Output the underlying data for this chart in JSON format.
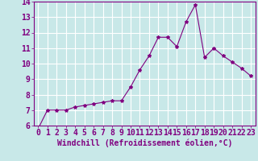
{
  "x": [
    0,
    1,
    2,
    3,
    4,
    5,
    6,
    7,
    8,
    9,
    10,
    11,
    12,
    13,
    14,
    15,
    16,
    17,
    18,
    19,
    20,
    21,
    22,
    23
  ],
  "y": [
    5.8,
    7.0,
    7.0,
    7.0,
    7.2,
    7.3,
    7.4,
    7.5,
    7.6,
    7.6,
    8.5,
    9.6,
    10.5,
    11.7,
    11.7,
    11.1,
    12.7,
    13.8,
    10.4,
    11.0,
    10.5,
    10.1,
    9.7,
    9.2
  ],
  "line_color": "#800080",
  "marker": "*",
  "marker_size": 3,
  "bg_color": "#c8e8e8",
  "grid_color": "#ffffff",
  "xlabel": "Windchill (Refroidissement éolien,°C)",
  "ylim": [
    6,
    14
  ],
  "xlim": [
    -0.5,
    23.5
  ],
  "yticks": [
    6,
    7,
    8,
    9,
    10,
    11,
    12,
    13,
    14
  ],
  "xticks": [
    0,
    1,
    2,
    3,
    4,
    5,
    6,
    7,
    8,
    9,
    10,
    11,
    12,
    13,
    14,
    15,
    16,
    17,
    18,
    19,
    20,
    21,
    22,
    23
  ],
  "line_color_hex": "#800080",
  "xlabel_fontsize": 7,
  "tick_fontsize": 7,
  "xtick_fontsize": 5.5
}
